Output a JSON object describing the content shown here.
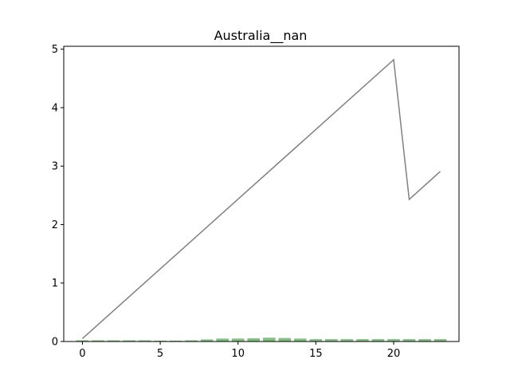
{
  "chart_data": {
    "type": "bar+line",
    "title": "Australia__nan",
    "xlabel": "",
    "ylabel": "",
    "xlim": [
      -1.2,
      24.2
    ],
    "ylim": [
      0,
      5.05
    ],
    "x_ticks": [
      0,
      5,
      10,
      15,
      20
    ],
    "y_ticks": [
      0,
      1,
      2,
      3,
      4,
      5
    ],
    "grid": false,
    "legend": "none",
    "bars": {
      "color": "#7fbf7f",
      "x": [
        0,
        1,
        2,
        3,
        4,
        5,
        6,
        7,
        8,
        9,
        10,
        11,
        12,
        13,
        14,
        15,
        16,
        17,
        18,
        19,
        20,
        21,
        22,
        23
      ],
      "values": [
        0.02,
        0.02,
        0.02,
        0.02,
        0.02,
        0.015,
        0.015,
        0.02,
        0.035,
        0.05,
        0.05,
        0.055,
        0.065,
        0.06,
        0.05,
        0.04,
        0.04,
        0.04,
        0.04,
        0.04,
        0.04,
        0.04,
        0.04,
        0.04
      ]
    },
    "line": {
      "color": "#808080",
      "x": [
        0,
        20,
        21,
        23
      ],
      "values": [
        0.05,
        4.82,
        2.43,
        2.91
      ]
    }
  }
}
